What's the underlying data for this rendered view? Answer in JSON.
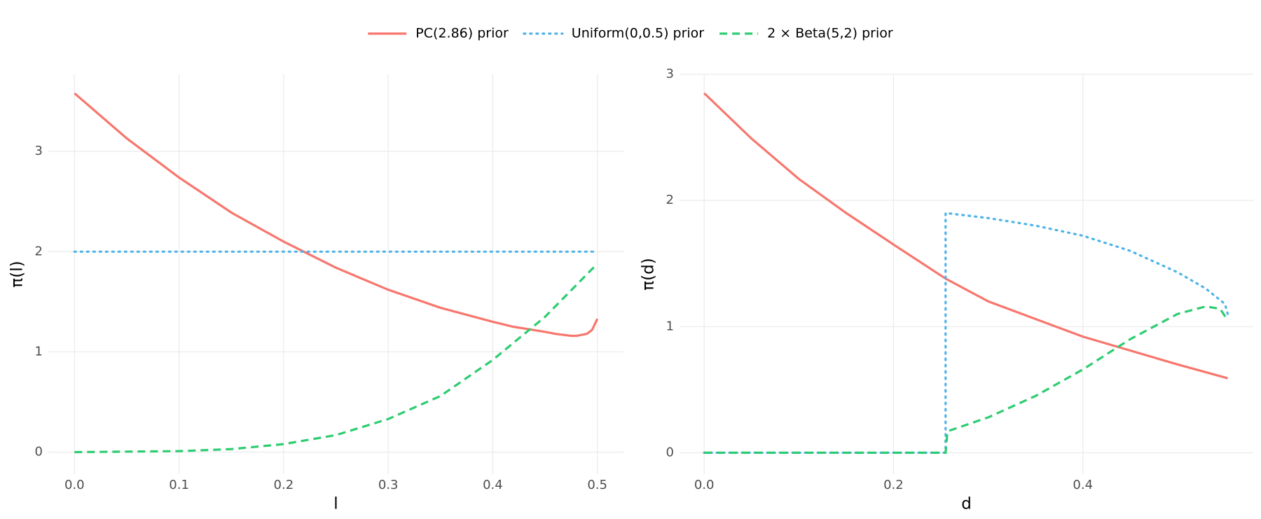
{
  "chart_data": [
    {
      "type": "line",
      "xlabel": "l",
      "ylabel": "π(l)",
      "xlim": [
        -0.025,
        0.525
      ],
      "ylim": [
        -0.22,
        3.77
      ],
      "xticks": [
        {
          "value": 0,
          "label": "0.0"
        },
        {
          "value": 0.1,
          "label": "0.1"
        },
        {
          "value": 0.2,
          "label": "0.2"
        },
        {
          "value": 0.3,
          "label": "0.3"
        },
        {
          "value": 0.4,
          "label": "0.4"
        },
        {
          "value": 0.5,
          "label": "0.5"
        }
      ],
      "yticks": [
        0,
        1,
        2,
        3
      ],
      "grid": true,
      "series": [
        {
          "name": "PC(2.86) prior",
          "color": "#f8766d",
          "dash": "solid",
          "x": [
            0,
            0.05,
            0.1,
            0.15,
            0.2,
            0.25,
            0.3,
            0.35,
            0.4,
            0.42,
            0.45,
            0.46,
            0.475,
            0.48,
            0.49,
            0.495,
            0.5
          ],
          "values": [
            3.58,
            3.13,
            2.74,
            2.39,
            2.1,
            1.84,
            1.62,
            1.44,
            1.3,
            1.25,
            1.2,
            1.18,
            1.16,
            1.16,
            1.18,
            1.22,
            1.33
          ]
        },
        {
          "name": "Uniform(0,0.5) prior",
          "color": "#4eb3e8",
          "dash": "dotted",
          "x": [
            0,
            0.5
          ],
          "values": [
            2,
            2
          ]
        },
        {
          "name": "2 × Beta(5,2) prior",
          "color": "#2ecc71",
          "dash": "dashed",
          "x": [
            0,
            0.1,
            0.15,
            0.2,
            0.25,
            0.3,
            0.35,
            0.4,
            0.45,
            0.5
          ],
          "values": [
            0,
            0.01,
            0.03,
            0.08,
            0.17,
            0.33,
            0.56,
            0.92,
            1.35,
            1.88
          ]
        }
      ]
    },
    {
      "type": "line",
      "xlabel": "d",
      "ylabel": "π(d)",
      "xlim": [
        -0.026,
        0.58
      ],
      "ylim": [
        -0.17,
        3.0
      ],
      "xticks": [
        {
          "value": 0,
          "label": "0.0"
        },
        {
          "value": 0.2,
          "label": "0.2"
        },
        {
          "value": 0.4,
          "label": "0.4"
        }
      ],
      "yticks": [
        0,
        1,
        2,
        3
      ],
      "grid": true,
      "series": [
        {
          "name": "PC(2.86) prior",
          "color": "#f8766d",
          "dash": "solid",
          "x": [
            0,
            0.05,
            0.1,
            0.15,
            0.2,
            0.255,
            0.3,
            0.4,
            0.5,
            0.553
          ],
          "values": [
            2.85,
            2.49,
            2.17,
            1.9,
            1.65,
            1.38,
            1.2,
            0.92,
            0.7,
            0.59
          ]
        },
        {
          "name": "Uniform(0,0.5) prior",
          "color": "#4eb3e8",
          "dash": "dotted",
          "x": [
            0,
            0.255,
            0.255,
            0.3,
            0.35,
            0.4,
            0.45,
            0.5,
            0.53,
            0.55,
            0.553
          ],
          "values": [
            0,
            0,
            1.9,
            1.86,
            1.8,
            1.72,
            1.6,
            1.43,
            1.3,
            1.18,
            1.1
          ]
        },
        {
          "name": "2 × Beta(5,2) prior",
          "color": "#2ecc71",
          "dash": "dashed",
          "x": [
            0,
            0.255,
            0.257,
            0.3,
            0.35,
            0.4,
            0.45,
            0.5,
            0.53,
            0.545,
            0.553
          ],
          "values": [
            0,
            0,
            0.17,
            0.28,
            0.45,
            0.66,
            0.9,
            1.1,
            1.16,
            1.14,
            1.05
          ]
        }
      ]
    }
  ]
}
